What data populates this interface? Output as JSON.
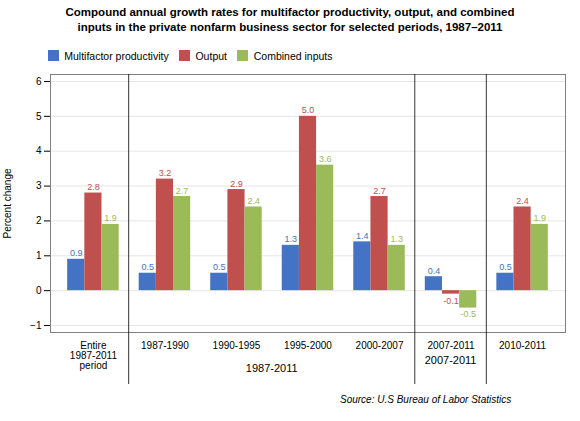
{
  "chart_data": {
    "type": "bar",
    "title": "Compound annual growth rates for multifactor productivity, output, and combined",
    "subtitle": "inputs in the private nonfarm business sector for selected periods, 1987–2011",
    "ylabel": "Percent change",
    "categories": [
      "Entire\n1987-2011\nperiod",
      "1987-1990",
      "1990-1995",
      "1995-2000",
      "2000-2007",
      "2007-2011",
      "2010-2011"
    ],
    "series": [
      {
        "name": "Multifactor productivity",
        "color": "#4472C4",
        "values": [
          0.9,
          0.5,
          0.5,
          1.3,
          1.4,
          0.4,
          0.5
        ]
      },
      {
        "name": "Output",
        "color": "#C0504D",
        "values": [
          2.8,
          3.2,
          2.9,
          5.0,
          2.7,
          -0.1,
          2.4
        ],
        "value_labels": [
          "2.8",
          "3.2",
          "2.9",
          "5.0",
          "2.7",
          "-0.1",
          "2.4"
        ]
      },
      {
        "name": "Combined inputs",
        "color": "#9BBB59",
        "values": [
          1.9,
          2.7,
          2.4,
          3.6,
          1.3,
          -0.5,
          1.9
        ]
      }
    ],
    "ylim": [
      -1.2,
      6.2
    ],
    "yticks": [
      -1,
      0,
      1,
      2,
      3,
      4,
      5,
      6
    ],
    "grid": true,
    "legend": "upper left",
    "data_labels": true,
    "annotations": [
      "1987-2011",
      "2007-2011"
    ],
    "source": "Source: U.S Bureau of Labor Statistics"
  }
}
